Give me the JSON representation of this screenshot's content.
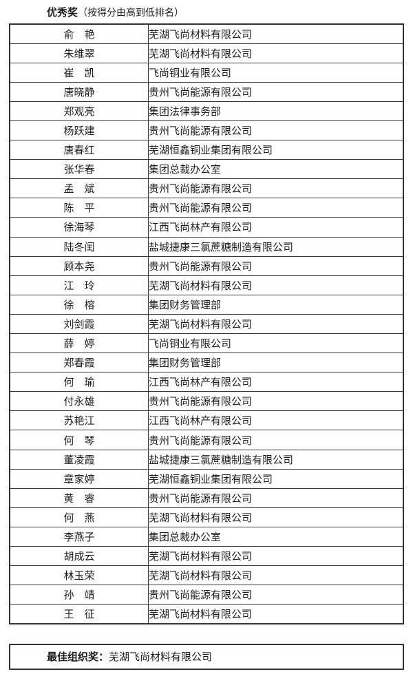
{
  "page": {
    "title_bold": "优秀奖",
    "title_note": "（按得分由高到低排名）"
  },
  "table": {
    "rows": [
      {
        "name": "俞　艳",
        "org": "芜湖飞尚材料有限公司"
      },
      {
        "name": "朱维翠",
        "org": "芜湖飞尚材料有限公司"
      },
      {
        "name": "崔　凯",
        "org": "飞尚铜业有限公司"
      },
      {
        "name": "唐晓静",
        "org": "贵州飞尚能源有限公司"
      },
      {
        "name": "郑观亮",
        "org": "集团法律事务部"
      },
      {
        "name": "杨跃建",
        "org": "贵州飞尚能源有限公司"
      },
      {
        "name": "唐春红",
        "org": "芜湖恒鑫铜业集团有限公司"
      },
      {
        "name": "张华春",
        "org": "集团总裁办公室"
      },
      {
        "name": "孟　斌",
        "org": "贵州飞尚能源有限公司"
      },
      {
        "name": "陈　平",
        "org": "贵州飞尚能源有限公司"
      },
      {
        "name": "徐海琴",
        "org": "江西飞尚林产有限公司"
      },
      {
        "name": "陆冬闰",
        "org": "盐城捷康三氯蔗糖制造有限公司"
      },
      {
        "name": "顾本尧",
        "org": "贵州飞尚能源有限公司"
      },
      {
        "name": "江　玲",
        "org": "芜湖飞尚材料有限公司"
      },
      {
        "name": "徐　榕",
        "org": "集团财务管理部"
      },
      {
        "name": "刘剑霞",
        "org": "芜湖飞尚材料有限公司"
      },
      {
        "name": "薛　婷",
        "org": "飞尚铜业有限公司"
      },
      {
        "name": "郑春霞",
        "org": "集团财务管理部"
      },
      {
        "name": "何　瑜",
        "org": "江西飞尚林产有限公司"
      },
      {
        "name": "付永雄",
        "org": "贵州飞尚能源有限公司"
      },
      {
        "name": "苏艳江",
        "org": "江西飞尚林产有限公司"
      },
      {
        "name": "何　琴",
        "org": "贵州飞尚能源有限公司"
      },
      {
        "name": "董凌霞",
        "org": "盐城捷康三氯蔗糖制造有限公司"
      },
      {
        "name": "章家婷",
        "org": "芜湖恒鑫铜业集团有限公司"
      },
      {
        "name": "黄　睿",
        "org": "贵州飞尚能源有限公司"
      },
      {
        "name": "何　燕",
        "org": "芜湖飞尚材料有限公司"
      },
      {
        "name": "李燕子",
        "org": "集团总裁办公室"
      },
      {
        "name": "胡成云",
        "org": "芜湖飞尚材料有限公司"
      },
      {
        "name": "林玉荣",
        "org": "芜湖飞尚材料有限公司"
      },
      {
        "name": "孙　靖",
        "org": "贵州飞尚能源有限公司"
      },
      {
        "name": "王　征",
        "org": "芜湖飞尚材料有限公司"
      }
    ]
  },
  "footer": {
    "label": "最佳组织奖：",
    "org": "芜湖飞尚材料有限公司"
  },
  "colors": {
    "border": "#333333",
    "text": "#1d1d1d",
    "background": "#ffffff"
  }
}
